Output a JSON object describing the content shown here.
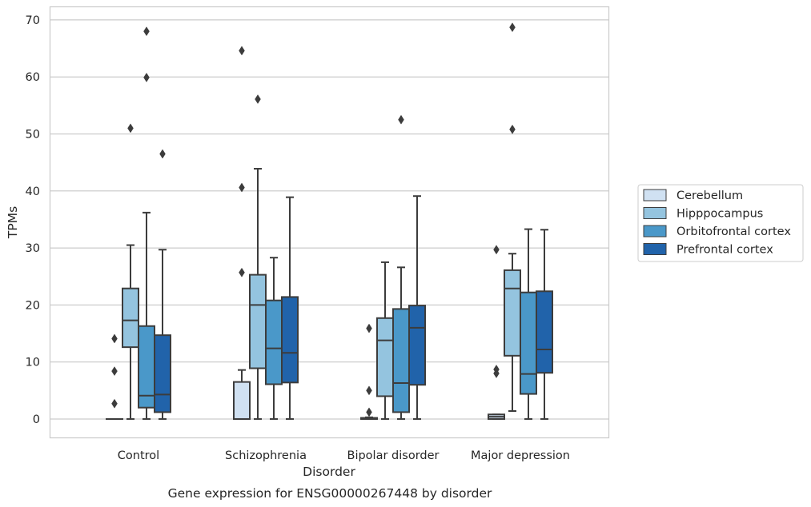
{
  "chart_data": {
    "type": "box",
    "caption": "Gene expression for ENSG00000267448 by disorder",
    "xlabel": "Disorder",
    "ylabel": "TPMs",
    "ylim": [
      -3.3,
      72.3
    ],
    "yticks": [
      0,
      10,
      20,
      30,
      40,
      50,
      60,
      70
    ],
    "grid": "horizontal",
    "legend_position": "right",
    "colors": {
      "Cerebellum": "#d0e1f2",
      "Hipppocampus": "#94c4df",
      "Orbitofrontal cortex": "#4a98c9",
      "Prefrontal cortex": "#2163aa"
    },
    "line_color": "#3c3c3c",
    "categories": [
      "Control",
      "Schizophrenia",
      "Bipolar disorder",
      "Major depression"
    ],
    "series": [
      {
        "name": "Cerebellum",
        "boxes": [
          {
            "whislo": 0,
            "q1": 0,
            "med": 0,
            "q3": 0,
            "whishi": 0,
            "fliers": [
              2.7,
              8.4,
              14.1
            ]
          },
          {
            "whislo": 0,
            "q1": 0,
            "med": 0,
            "q3": 6.5,
            "whishi": 8.6,
            "fliers": [
              25.7,
              40.6,
              64.6
            ]
          },
          {
            "whislo": 0,
            "q1": 0,
            "med": 0,
            "q3": 0.2,
            "whishi": 0.3,
            "fliers": [
              1.2,
              5.0,
              15.9
            ]
          },
          {
            "whislo": 0,
            "q1": 0,
            "med": 0.4,
            "q3": 0.8,
            "whishi": 0.8,
            "fliers": [
              8.0,
              8.7,
              29.7
            ]
          }
        ]
      },
      {
        "name": "Hipppocampus",
        "boxes": [
          {
            "whislo": 0,
            "q1": 12.6,
            "med": 17.3,
            "q3": 22.9,
            "whishi": 30.5,
            "fliers": [
              51.0
            ]
          },
          {
            "whislo": 0,
            "q1": 8.9,
            "med": 20.0,
            "q3": 25.3,
            "whishi": 43.9,
            "fliers": [
              56.1
            ]
          },
          {
            "whislo": 0,
            "q1": 4.0,
            "med": 13.8,
            "q3": 17.7,
            "whishi": 27.5,
            "fliers": []
          },
          {
            "whislo": 1.4,
            "q1": 11.1,
            "med": 22.9,
            "q3": 26.1,
            "whishi": 29.0,
            "fliers": [
              50.8,
              68.7
            ]
          }
        ]
      },
      {
        "name": "Orbitofrontal cortex",
        "boxes": [
          {
            "whislo": 0,
            "q1": 2.0,
            "med": 4.1,
            "q3": 16.3,
            "whishi": 36.2,
            "fliers": [
              59.9,
              68.0
            ]
          },
          {
            "whislo": 0,
            "q1": 6.1,
            "med": 12.4,
            "q3": 20.8,
            "whishi": 28.3,
            "fliers": []
          },
          {
            "whislo": 0,
            "q1": 1.2,
            "med": 6.3,
            "q3": 19.3,
            "whishi": 26.6,
            "fliers": [
              52.5
            ]
          },
          {
            "whislo": 0,
            "q1": 4.4,
            "med": 7.9,
            "q3": 22.2,
            "whishi": 33.3,
            "fliers": []
          }
        ]
      },
      {
        "name": "Prefrontal cortex",
        "boxes": [
          {
            "whislo": 0,
            "q1": 1.2,
            "med": 4.3,
            "q3": 14.7,
            "whishi": 29.7,
            "fliers": [
              46.5
            ]
          },
          {
            "whislo": 0,
            "q1": 6.4,
            "med": 11.6,
            "q3": 21.4,
            "whishi": 38.9,
            "fliers": []
          },
          {
            "whislo": 0,
            "q1": 6.0,
            "med": 16.0,
            "q3": 19.9,
            "whishi": 39.1,
            "fliers": []
          },
          {
            "whislo": 0,
            "q1": 8.1,
            "med": 12.2,
            "q3": 22.4,
            "whishi": 33.2,
            "fliers": []
          }
        ]
      }
    ]
  }
}
